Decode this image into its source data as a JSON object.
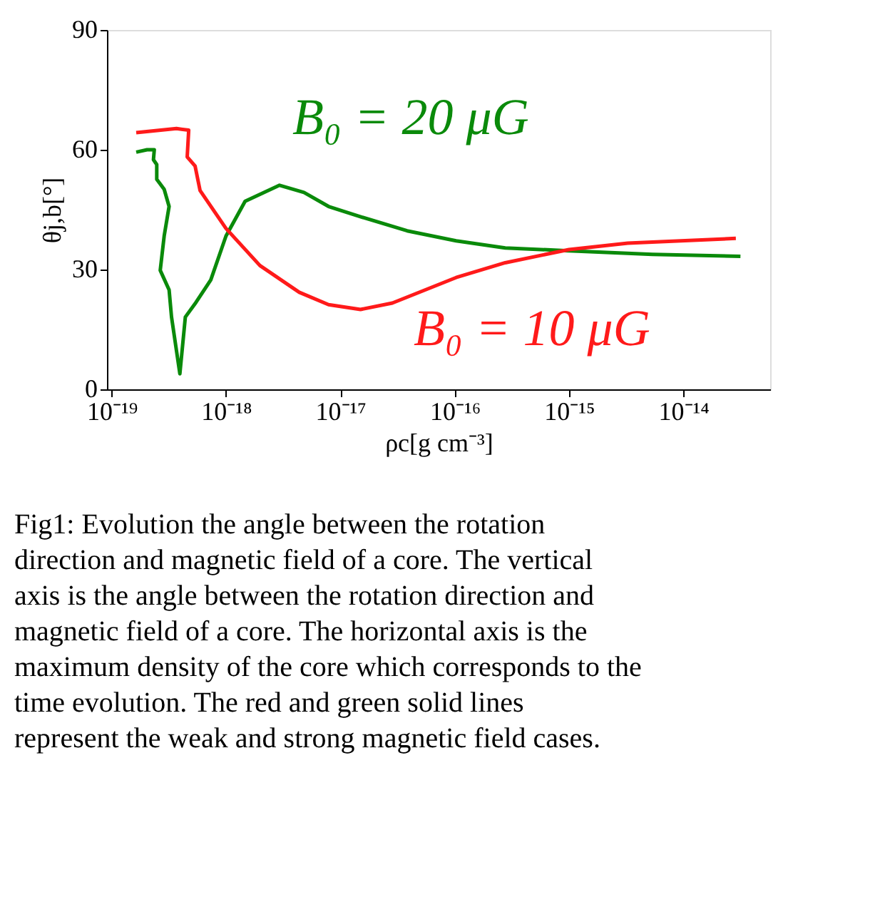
{
  "chart_data": {
    "type": "line",
    "xlabel": "ρc[g cm⁻³]",
    "ylabel": "θj,b[°]",
    "log": "x",
    "grid": false,
    "legend": false,
    "marker": "none",
    "line_style": "solid",
    "xlim": [
      9.1e-20,
      5.75e-14
    ],
    "xticks": [
      {
        "value": 1e-19,
        "label": "10⁻¹⁹"
      },
      {
        "value": 1e-18,
        "label": "10⁻¹⁸"
      },
      {
        "value": 1e-17,
        "label": "10⁻¹⁷"
      },
      {
        "value": 1e-16,
        "label": "10⁻¹⁶"
      },
      {
        "value": 1e-15,
        "label": "10⁻¹⁵"
      },
      {
        "value": 1e-14,
        "label": "10⁻¹⁴"
      }
    ],
    "ylim": [
      0,
      90
    ],
    "yticks": [
      0,
      30,
      60,
      90
    ],
    "series": [
      {
        "name": "B₀ = 20 μG",
        "color": "#0a8a0a",
        "x": [
          1.64e-19,
          2.04e-19,
          2.36e-19,
          2.32e-19,
          2.48e-19,
          2.48e-19,
          2.88e-19,
          3.18e-19,
          2.88e-19,
          2.66e-19,
          3.18e-19,
          3.34e-19,
          3.95e-19,
          4.41e-19,
          5.47e-19,
          7.36e-19,
          1e-18,
          1.47e-18,
          2.94e-18,
          4.81e-18,
          7.89e-18,
          1.43e-17,
          3.84e-17,
          1.03e-16,
          2.77e-16,
          1e-15,
          5.37e-15,
          3.16e-14
        ],
        "values": [
          59.4,
          60.0,
          60.0,
          57.5,
          56.3,
          52.6,
          50.1,
          45.8,
          38.4,
          29.8,
          24.9,
          18.1,
          3.9,
          18.1,
          21.8,
          27.4,
          38.4,
          47.1,
          51.1,
          49.3,
          45.8,
          43.4,
          39.7,
          37.2,
          35.4,
          34.7,
          33.8,
          33.3
        ]
      },
      {
        "name": "B₀ = 10 μG",
        "color": "#ff1a1a",
        "x": [
          1.64e-19,
          3.69e-19,
          4.72e-19,
          4.58e-19,
          5.37e-19,
          5.93e-19,
          1e-18,
          1.98e-18,
          4.37e-18,
          7.89e-18,
          1.5e-17,
          2.85e-17,
          1.03e-16,
          2.77e-16,
          1e-15,
          3.27e-15,
          2.88e-14
        ],
        "values": [
          64.3,
          65.3,
          64.9,
          58.2,
          55.9,
          49.8,
          40.3,
          31.0,
          24.3,
          21.2,
          20.0,
          21.6,
          28.0,
          31.7,
          35.0,
          36.6,
          37.8
        ]
      }
    ],
    "annotations": [
      "Fig1: Evolution the angle between the rotation direction and magnetic field of a core. The vertical axis is the angle between the rotation direction and magnetic field of a core. The horizontal axis is the maximum density of the core which corresponds to the time evolution. The red and green solid lines represent the weak and strong magnetic field cases."
    ]
  }
}
